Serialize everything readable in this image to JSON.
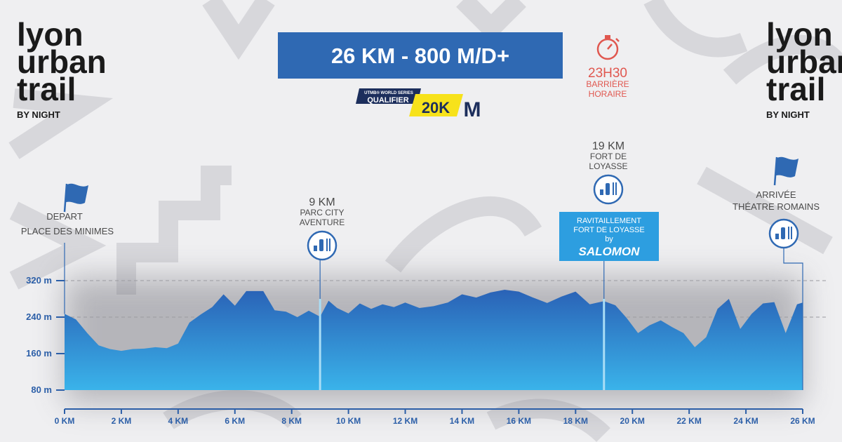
{
  "logo": {
    "line1": "lyon",
    "line2": "urban",
    "line3": "trail",
    "line4": "BY NIGHT"
  },
  "header": {
    "title": "26 KM - 800 M/D+"
  },
  "badge": {
    "top": "UTMB® WORLD SERIES",
    "middle": "QUALIFIER",
    "distance": "20K",
    "mark": "M"
  },
  "barrier": {
    "time": "23H30",
    "line1": "BARRIÈRE",
    "line2": "HORAIRE",
    "icon": "stopwatch-icon"
  },
  "points": {
    "start": {
      "line1": "DEPART",
      "line2": "PLACE DES MINIMES",
      "icon": "flag-icon"
    },
    "p9": {
      "km": "9 KM",
      "line1": "PARC CITY",
      "line2": "AVENTURE",
      "icon": "aid-station-icon"
    },
    "p19": {
      "km": "19 KM",
      "line1": "FORT DE",
      "line2": "LOYASSE",
      "icon": "aid-station-icon"
    },
    "finish": {
      "line1": "ARRIVÉE",
      "line2": "THÉATRE ROMAINS",
      "icon": "flag-icon"
    }
  },
  "sponsor": {
    "line1": "RAVITAILLEMENT",
    "line2": "FORT DE LOYASSE",
    "line3": "by",
    "brand": "SALOMON"
  },
  "colors": {
    "primary": "#2f69b3",
    "area_top": "#2a62b6",
    "area_bottom": "#3ab3ea",
    "accent_red": "#e0574f",
    "badge_yellow": "#f7e21b",
    "badge_navy": "#1c2e5c",
    "sponsor_bg": "#2d9ee0"
  },
  "chart_data": {
    "type": "area",
    "title": "",
    "xlabel": "",
    "ylabel": "",
    "x_unit": "km",
    "y_unit": "m",
    "xlim": [
      0,
      26
    ],
    "ylim": [
      80,
      320
    ],
    "x_ticks": [
      0,
      2,
      4,
      6,
      8,
      10,
      12,
      14,
      16,
      18,
      20,
      22,
      24,
      26
    ],
    "x_tick_labels": [
      "0 KM",
      "2 KM",
      "4 KM",
      "6 KM",
      "8 KM",
      "10 KM",
      "12 KM",
      "14 KM",
      "16 KM",
      "18 KM",
      "20 KM",
      "22 KM",
      "24 KM",
      "26 KM"
    ],
    "y_ticks": [
      80,
      160,
      240,
      320
    ],
    "y_tick_labels": [
      "80 m",
      "160 m",
      "240 m",
      "320 m"
    ],
    "gridlines_dashed": [
      240,
      320
    ],
    "markers": [
      9,
      19,
      26
    ],
    "series": [
      {
        "points": [
          [
            0,
            247
          ],
          [
            0.4,
            235
          ],
          [
            0.8,
            205
          ],
          [
            1.2,
            178
          ],
          [
            1.6,
            170
          ],
          [
            2,
            166
          ],
          [
            2.4,
            170
          ],
          [
            2.8,
            171
          ],
          [
            3.2,
            174
          ],
          [
            3.6,
            172
          ],
          [
            4.0,
            182
          ],
          [
            4.4,
            228
          ],
          [
            4.8,
            246
          ],
          [
            5.2,
            262
          ],
          [
            5.6,
            290
          ],
          [
            6.0,
            265
          ],
          [
            6.4,
            297
          ],
          [
            7.0,
            297
          ],
          [
            7.4,
            255
          ],
          [
            7.8,
            252
          ],
          [
            8.2,
            240
          ],
          [
            8.6,
            254
          ],
          [
            9.0,
            241
          ],
          [
            9.3,
            276
          ],
          [
            9.6,
            260
          ],
          [
            10.0,
            248
          ],
          [
            10.4,
            270
          ],
          [
            10.8,
            258
          ],
          [
            11.2,
            268
          ],
          [
            11.6,
            262
          ],
          [
            12.0,
            272
          ],
          [
            12.5,
            260
          ],
          [
            13.0,
            264
          ],
          [
            13.5,
            272
          ],
          [
            14.0,
            290
          ],
          [
            14.5,
            283
          ],
          [
            15.0,
            294
          ],
          [
            15.5,
            300
          ],
          [
            16.0,
            296
          ],
          [
            16.5,
            283
          ],
          [
            17.0,
            271
          ],
          [
            17.5,
            285
          ],
          [
            18.0,
            296
          ],
          [
            18.5,
            268
          ],
          [
            19.0,
            275
          ],
          [
            19.4,
            266
          ],
          [
            19.8,
            238
          ],
          [
            20.2,
            205
          ],
          [
            20.6,
            222
          ],
          [
            21.0,
            233
          ],
          [
            21.4,
            218
          ],
          [
            21.8,
            205
          ],
          [
            22.2,
            174
          ],
          [
            22.6,
            196
          ],
          [
            23.0,
            258
          ],
          [
            23.4,
            280
          ],
          [
            23.8,
            214
          ],
          [
            24.2,
            247
          ],
          [
            24.6,
            270
          ],
          [
            25.0,
            273
          ],
          [
            25.4,
            205
          ],
          [
            25.8,
            268
          ],
          [
            26.0,
            272
          ]
        ]
      }
    ]
  }
}
